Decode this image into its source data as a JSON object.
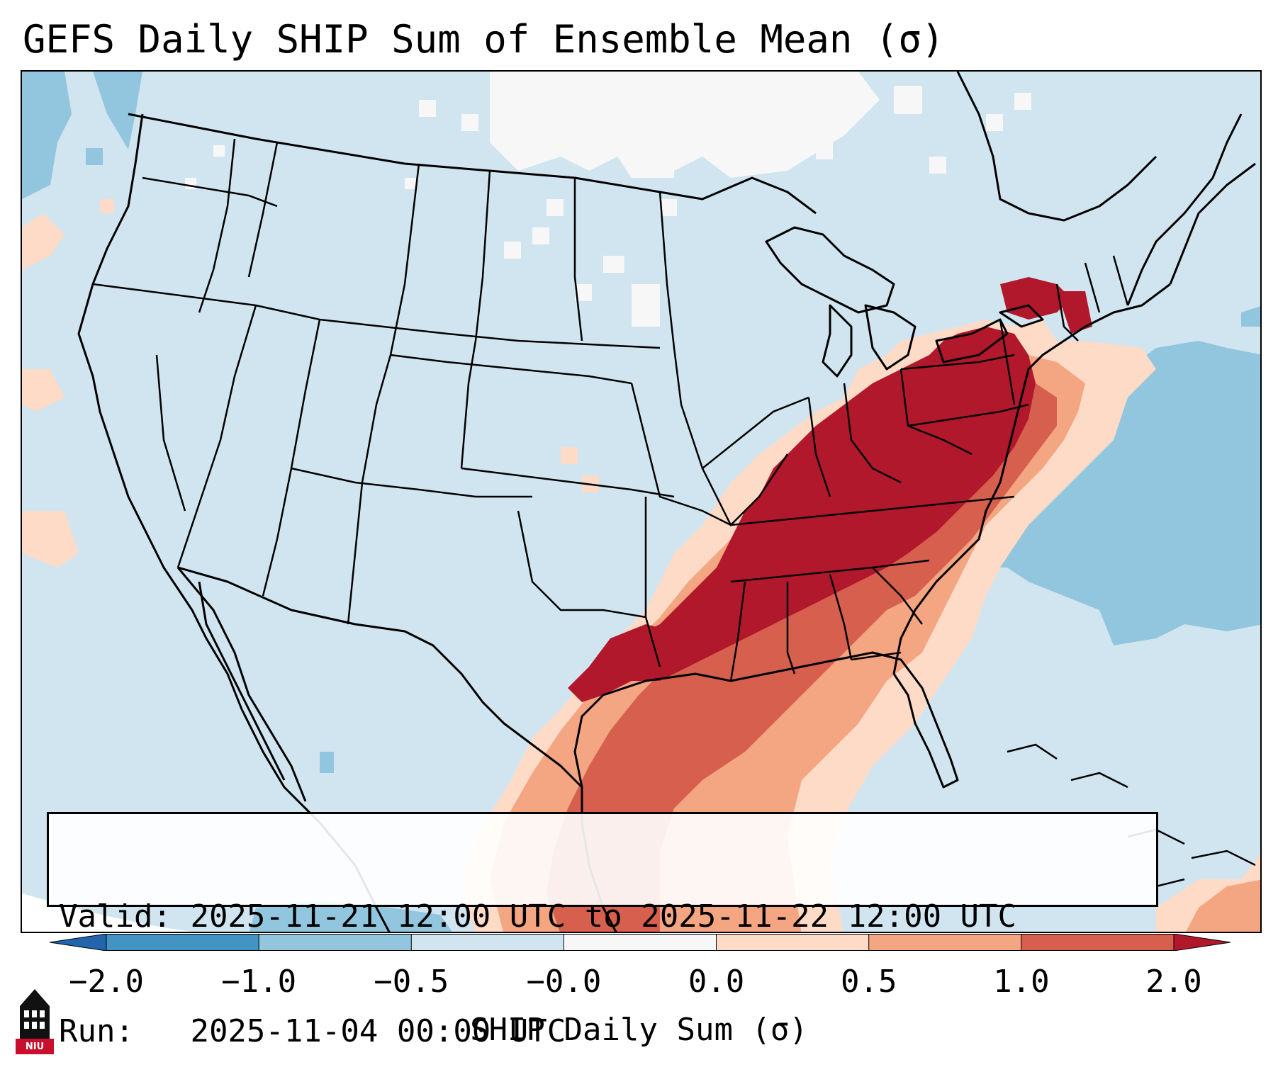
{
  "title": "GEFS Daily SHIP Sum of Ensemble Mean (σ)",
  "info": {
    "valid_label": "Valid:",
    "valid_value": "2025-11-21 12:00 UTC to 2025-11-22 12:00 UTC",
    "run_label": "Run:",
    "run_value": "2025-11-04 00:00 UTC"
  },
  "colorbar": {
    "label": "SHIP Daily Sum (σ)",
    "ticks": [
      "−2.0",
      "−1.0",
      "−0.5",
      "−0.0",
      "0.0",
      "0.5",
      "1.0",
      "2.0"
    ],
    "bins": [
      {
        "from": -2.0,
        "to": -1.0,
        "color": "#4393c3"
      },
      {
        "from": -1.0,
        "to": -0.5,
        "color": "#92c5de"
      },
      {
        "from": -0.5,
        "to": -0.0,
        "color": "#d1e5f0"
      },
      {
        "from": -0.0,
        "to": 0.0,
        "color": "#f7f7f7"
      },
      {
        "from": 0.0,
        "to": 0.5,
        "color": "#fddbc7"
      },
      {
        "from": 0.5,
        "to": 1.0,
        "color": "#f4a582"
      },
      {
        "from": 1.0,
        "to": 2.0,
        "color": "#d6604d"
      }
    ],
    "under_color": "#2166ac",
    "over_color": "#b2182b"
  },
  "logo": {
    "text": "NIU",
    "icon": "university-tower-icon"
  }
}
